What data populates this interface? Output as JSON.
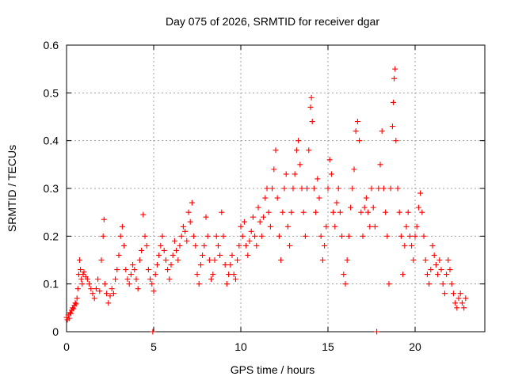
{
  "chart_data": {
    "type": "scatter",
    "title": "Day 075 of 2026, SRMTID for receiver dgar",
    "xlabel": "GPS time / hours",
    "ylabel": "SRMTID / TECUs",
    "xlim": [
      0,
      24
    ],
    "ylim": [
      0,
      0.6
    ],
    "xticks": [
      0,
      5,
      10,
      15,
      20
    ],
    "xtick_labels": [
      "0",
      "5",
      "10",
      "15",
      "20"
    ],
    "yticks": [
      0,
      0.1,
      0.2,
      0.3,
      0.4,
      0.5,
      0.6
    ],
    "ytick_labels": [
      "0",
      "0.1",
      "0.2",
      "0.3",
      "0.4",
      "0.5",
      "0.6"
    ],
    "grid": true,
    "marker": "+",
    "color": "#ff0000",
    "series": [
      {
        "name": "SRMTID",
        "points": [
          [
            0.0,
            0.03
          ],
          [
            0.05,
            0.025
          ],
          [
            0.1,
            0.035
          ],
          [
            0.15,
            0.028
          ],
          [
            0.2,
            0.04
          ],
          [
            0.25,
            0.038
          ],
          [
            0.3,
            0.045
          ],
          [
            0.35,
            0.05
          ],
          [
            0.4,
            0.048
          ],
          [
            0.45,
            0.055
          ],
          [
            0.5,
            0.06
          ],
          [
            0.55,
            0.058
          ],
          [
            0.6,
            0.07
          ],
          [
            0.65,
            0.09
          ],
          [
            0.7,
            0.12
          ],
          [
            0.75,
            0.15
          ],
          [
            0.8,
            0.13
          ],
          [
            0.85,
            0.11
          ],
          [
            0.9,
            0.1
          ],
          [
            0.95,
            0.12
          ],
          [
            1.0,
            0.125
          ],
          [
            1.1,
            0.115
          ],
          [
            1.2,
            0.11
          ],
          [
            1.3,
            0.1
          ],
          [
            1.4,
            0.09
          ],
          [
            1.5,
            0.08
          ],
          [
            1.6,
            0.07
          ],
          [
            1.7,
            0.09
          ],
          [
            1.8,
            0.11
          ],
          [
            1.9,
            0.085
          ],
          [
            2.0,
            0.15
          ],
          [
            2.1,
            0.2
          ],
          [
            2.15,
            0.235
          ],
          [
            2.2,
            0.1
          ],
          [
            2.3,
            0.08
          ],
          [
            2.4,
            0.06
          ],
          [
            2.5,
            0.075
          ],
          [
            2.6,
            0.09
          ],
          [
            2.7,
            0.08
          ],
          [
            2.8,
            0.11
          ],
          [
            2.9,
            0.13
          ],
          [
            3.0,
            0.16
          ],
          [
            3.1,
            0.2
          ],
          [
            3.2,
            0.22
          ],
          [
            3.3,
            0.18
          ],
          [
            3.4,
            0.13
          ],
          [
            3.5,
            0.11
          ],
          [
            3.6,
            0.1
          ],
          [
            3.7,
            0.12
          ],
          [
            3.8,
            0.14
          ],
          [
            3.9,
            0.13
          ],
          [
            4.0,
            0.11
          ],
          [
            4.1,
            0.09
          ],
          [
            4.2,
            0.15
          ],
          [
            4.3,
            0.17
          ],
          [
            4.4,
            0.245
          ],
          [
            4.5,
            0.2
          ],
          [
            4.6,
            0.18
          ],
          [
            4.7,
            0.13
          ],
          [
            4.8,
            0.11
          ],
          [
            4.9,
            0.1
          ],
          [
            4.95,
            0.0
          ],
          [
            5.0,
            0.085
          ],
          [
            5.1,
            0.12
          ],
          [
            5.2,
            0.14
          ],
          [
            5.3,
            0.16
          ],
          [
            5.4,
            0.18
          ],
          [
            5.5,
            0.2
          ],
          [
            5.6,
            0.17
          ],
          [
            5.7,
            0.15
          ],
          [
            5.8,
            0.13
          ],
          [
            5.9,
            0.11
          ],
          [
            6.0,
            0.14
          ],
          [
            6.1,
            0.16
          ],
          [
            6.2,
            0.19
          ],
          [
            6.3,
            0.17
          ],
          [
            6.4,
            0.15
          ],
          [
            6.5,
            0.18
          ],
          [
            6.6,
            0.2
          ],
          [
            6.7,
            0.22
          ],
          [
            6.8,
            0.21
          ],
          [
            6.9,
            0.19
          ],
          [
            7.0,
            0.25
          ],
          [
            7.1,
            0.23
          ],
          [
            7.2,
            0.27
          ],
          [
            7.3,
            0.2
          ],
          [
            7.4,
            0.18
          ],
          [
            7.5,
            0.12
          ],
          [
            7.6,
            0.1
          ],
          [
            7.7,
            0.14
          ],
          [
            7.8,
            0.16
          ],
          [
            7.9,
            0.18
          ],
          [
            8.0,
            0.24
          ],
          [
            8.1,
            0.2
          ],
          [
            8.2,
            0.15
          ],
          [
            8.3,
            0.11
          ],
          [
            8.4,
            0.12
          ],
          [
            8.5,
            0.15
          ],
          [
            8.6,
            0.2
          ],
          [
            8.7,
            0.18
          ],
          [
            8.8,
            0.16
          ],
          [
            8.9,
            0.25
          ],
          [
            9.0,
            0.2
          ],
          [
            9.1,
            0.14
          ],
          [
            9.2,
            0.1
          ],
          [
            9.3,
            0.12
          ],
          [
            9.4,
            0.14
          ],
          [
            9.5,
            0.16
          ],
          [
            9.6,
            0.12
          ],
          [
            9.7,
            0.11
          ],
          [
            9.8,
            0.15
          ],
          [
            9.9,
            0.18
          ],
          [
            10.0,
            0.22
          ],
          [
            10.1,
            0.2
          ],
          [
            10.2,
            0.23
          ],
          [
            10.3,
            0.18
          ],
          [
            10.4,
            0.16
          ],
          [
            10.5,
            0.19
          ],
          [
            10.6,
            0.21
          ],
          [
            10.7,
            0.24
          ],
          [
            10.8,
            0.2
          ],
          [
            10.9,
            0.18
          ],
          [
            11.0,
            0.26
          ],
          [
            11.1,
            0.23
          ],
          [
            11.2,
            0.2
          ],
          [
            11.3,
            0.24
          ],
          [
            11.4,
            0.28
          ],
          [
            11.5,
            0.3
          ],
          [
            11.6,
            0.25
          ],
          [
            11.7,
            0.22
          ],
          [
            11.8,
            0.3
          ],
          [
            11.9,
            0.34
          ],
          [
            12.0,
            0.38
          ],
          [
            12.1,
            0.28
          ],
          [
            12.2,
            0.2
          ],
          [
            12.3,
            0.15
          ],
          [
            12.4,
            0.25
          ],
          [
            12.5,
            0.3
          ],
          [
            12.6,
            0.33
          ],
          [
            12.7,
            0.22
          ],
          [
            12.8,
            0.18
          ],
          [
            12.9,
            0.25
          ],
          [
            13.0,
            0.3
          ],
          [
            13.1,
            0.33
          ],
          [
            13.2,
            0.38
          ],
          [
            13.3,
            0.4
          ],
          [
            13.4,
            0.35
          ],
          [
            13.5,
            0.3
          ],
          [
            13.6,
            0.25
          ],
          [
            13.7,
            0.2
          ],
          [
            13.8,
            0.3
          ],
          [
            13.9,
            0.38
          ],
          [
            14.0,
            0.47
          ],
          [
            14.05,
            0.49
          ],
          [
            14.1,
            0.44
          ],
          [
            14.2,
            0.3
          ],
          [
            14.3,
            0.25
          ],
          [
            14.4,
            0.32
          ],
          [
            14.5,
            0.28
          ],
          [
            14.6,
            0.2
          ],
          [
            14.7,
            0.15
          ],
          [
            14.8,
            0.18
          ],
          [
            14.9,
            0.22
          ],
          [
            15.0,
            0.3
          ],
          [
            15.1,
            0.36
          ],
          [
            15.2,
            0.33
          ],
          [
            15.3,
            0.25
          ],
          [
            15.4,
            0.22
          ],
          [
            15.5,
            0.27
          ],
          [
            15.6,
            0.3
          ],
          [
            15.7,
            0.25
          ],
          [
            15.8,
            0.2
          ],
          [
            15.9,
            0.12
          ],
          [
            16.0,
            0.1
          ],
          [
            16.1,
            0.15
          ],
          [
            16.2,
            0.2
          ],
          [
            16.3,
            0.26
          ],
          [
            16.4,
            0.3
          ],
          [
            16.5,
            0.34
          ],
          [
            16.6,
            0.42
          ],
          [
            16.7,
            0.44
          ],
          [
            16.8,
            0.4
          ],
          [
            16.9,
            0.25
          ],
          [
            17.0,
            0.2
          ],
          [
            17.1,
            0.26
          ],
          [
            17.2,
            0.28
          ],
          [
            17.3,
            0.25
          ],
          [
            17.4,
            0.22
          ],
          [
            17.5,
            0.3
          ],
          [
            17.6,
            0.26
          ],
          [
            17.7,
            0.22
          ],
          [
            17.8,
            0.0
          ],
          [
            17.9,
            0.3
          ],
          [
            18.0,
            0.35
          ],
          [
            18.1,
            0.42
          ],
          [
            18.2,
            0.3
          ],
          [
            18.3,
            0.25
          ],
          [
            18.4,
            0.2
          ],
          [
            18.5,
            0.1
          ],
          [
            18.6,
            0.3
          ],
          [
            18.7,
            0.43
          ],
          [
            18.75,
            0.48
          ],
          [
            18.8,
            0.53
          ],
          [
            18.85,
            0.55
          ],
          [
            18.9,
            0.4
          ],
          [
            19.0,
            0.3
          ],
          [
            19.1,
            0.25
          ],
          [
            19.2,
            0.2
          ],
          [
            19.3,
            0.12
          ],
          [
            19.4,
            0.18
          ],
          [
            19.5,
            0.22
          ],
          [
            19.6,
            0.25
          ],
          [
            19.7,
            0.2
          ],
          [
            19.8,
            0.18
          ],
          [
            19.9,
            0.15
          ],
          [
            20.0,
            0.2
          ],
          [
            20.1,
            0.22
          ],
          [
            20.2,
            0.26
          ],
          [
            20.3,
            0.29
          ],
          [
            20.4,
            0.25
          ],
          [
            20.5,
            0.2
          ],
          [
            20.6,
            0.15
          ],
          [
            20.7,
            0.12
          ],
          [
            20.8,
            0.1
          ],
          [
            20.9,
            0.13
          ],
          [
            21.0,
            0.18
          ],
          [
            21.1,
            0.16
          ],
          [
            21.2,
            0.14
          ],
          [
            21.3,
            0.12
          ],
          [
            21.4,
            0.15
          ],
          [
            21.5,
            0.13
          ],
          [
            21.6,
            0.1
          ],
          [
            21.7,
            0.08
          ],
          [
            21.8,
            0.12
          ],
          [
            21.9,
            0.15
          ],
          [
            22.0,
            0.13
          ],
          [
            22.1,
            0.1
          ],
          [
            22.2,
            0.08
          ],
          [
            22.3,
            0.06
          ],
          [
            22.4,
            0.05
          ],
          [
            22.5,
            0.07
          ],
          [
            22.6,
            0.08
          ],
          [
            22.7,
            0.06
          ],
          [
            22.8,
            0.05
          ],
          [
            22.9,
            0.07
          ]
        ]
      }
    ]
  }
}
